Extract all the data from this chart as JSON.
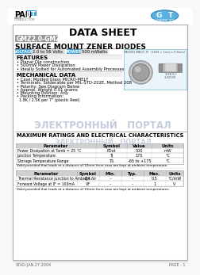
{
  "title": "DATA SHEET",
  "part_number": "GMZ2.0-GMZ56",
  "subtitle": "SURFACE MOUNT ZENER DIODES",
  "voltage_label": "VOLTAGE",
  "voltage_value": "2.0 to 56 Volts",
  "power_label": "POWER",
  "power_value": "500 mWatts",
  "features_title": "FEATURES",
  "features": [
    "Planar Die construction",
    "500mW Power Dissipation",
    "Ideally Suited for Automated Assembly Processes"
  ],
  "mech_title": "MECHANICAL DATA",
  "mech_items": [
    "Case: Molded Glass MICRO-MELF",
    "Terminals: Solderable per MIL-STD-202E, Method 208",
    "Polarity: See Diagram Below",
    "Approx. Weight 0.01 grams",
    "Mounting Position: Any",
    "Packing Information:",
    "1.8K / 2.5K per 7\" (plastic Reel)"
  ],
  "ratings_title": "MAXIMUM RATINGS AND ELECTRICAL CHARACTERISTICS",
  "watermark": "ЭЛЕКТРОННЫЙ   ПОРТАЛ",
  "table1_headers": [
    "Parameter",
    "Symbol",
    "Value",
    "Units"
  ],
  "table1_rows": [
    [
      "Power Dissipation at Tamb = 25 °C",
      "PDot",
      "500",
      "mW"
    ],
    [
      "Junction Temperature",
      "TJ",
      "175",
      "°C"
    ],
    [
      "Storage Temperature Range",
      "TS",
      "-65 to +175",
      "°C"
    ]
  ],
  "table1_note": "Valid provided that leads at a distance of 10mm from case are kept at ambient temperature.",
  "table2_headers": [
    "Parameter",
    "Symbol",
    "Min.",
    "Typ.",
    "Max.",
    "Units"
  ],
  "table2_rows": [
    [
      "Thermal Resistance junction to Ambient Air",
      "θJA",
      "–",
      "–",
      "0.5",
      "°C/mW"
    ],
    [
      "Forward Voltage at IF = 100mA",
      "VF",
      "–",
      "–",
      "1",
      "V"
    ]
  ],
  "table2_note": "Valid provided that leads at a distance of 10mm from case are kept at ambient temperatures.",
  "footer_left": "STAD-JAN.27.2004",
  "footer_right": "PAGE : 1",
  "bg_color": "#f8f8f8",
  "content_bg": "#ffffff",
  "blue_btn": "#3a9fd4",
  "grey_btn": "#e0e0e0",
  "table_hdr_bg": "#c8c8c8",
  "section_bg": "#eeeeee",
  "watermark_color": "#b0bcd0",
  "part_box_bg": "#999999",
  "diag_bg": "#eaf4fb",
  "diag_border": "#7bb8d4"
}
